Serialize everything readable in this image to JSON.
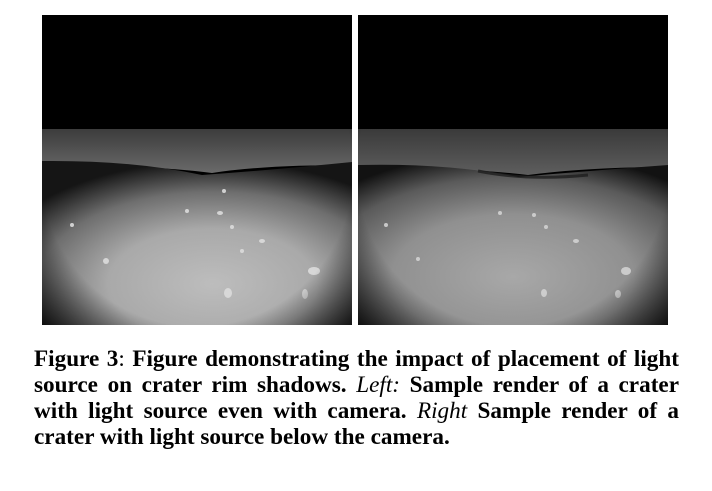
{
  "figure": {
    "label": "Figure 3",
    "colon": ":",
    "text": " Figure demonstrating the impact of placement of light source on crater rim shadows. ",
    "left_label": "Left:",
    "left_text": " Sample render of a crater with light source even with camera. ",
    "right_label": "Right",
    "right_text": " Sample render of a crater with light source below the camera."
  },
  "panels": {
    "left": {
      "subject": "crater render, light source even with camera"
    },
    "right": {
      "subject": "crater render, light source below camera"
    }
  },
  "colors": {
    "sky": "#000000",
    "terrain_light": "#bdbdbd",
    "terrain_dark": "#2a2a2a"
  }
}
